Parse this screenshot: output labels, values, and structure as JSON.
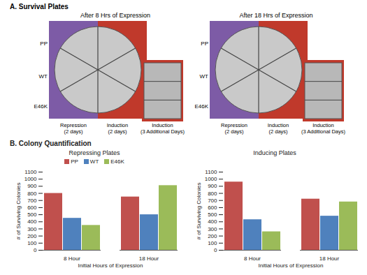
{
  "panel_a": {
    "title": "A. Survival Plates",
    "plates": [
      "After 8 Hrs of Expression",
      "After 18 Hrs of Expression"
    ],
    "strains": [
      "PP",
      "WT",
      "E46K"
    ],
    "conditions": [
      "Repression (2 days)",
      "Induction (2 days)",
      "Induction (3 Additional Days)"
    ]
  },
  "panel_b": {
    "title": "B. Colony Quantification"
  },
  "chart_data": [
    {
      "type": "bar",
      "title": "Repressing Plates",
      "categories": [
        "8 Hour",
        "18 Hour"
      ],
      "series": [
        {
          "name": "PP",
          "color": "#c0504d",
          "values": [
            800,
            750
          ]
        },
        {
          "name": "WT",
          "color": "#4f81bd",
          "values": [
            450,
            500
          ]
        },
        {
          "name": "E46K",
          "color": "#9bbb59",
          "values": [
            350,
            910
          ]
        }
      ],
      "xlabel": "Initial Hours of Expression",
      "ylabel": "# of Surviving Colonies",
      "ylim": [
        0,
        1100
      ],
      "yticks": [
        0,
        100,
        200,
        300,
        400,
        500,
        600,
        700,
        800,
        900,
        1000,
        1100
      ],
      "legend": "top"
    },
    {
      "type": "bar",
      "title": "Inducing Plates",
      "categories": [
        "8 Hour",
        "18 Hour"
      ],
      "series": [
        {
          "name": "PP",
          "color": "#c0504d",
          "values": [
            960,
            720
          ]
        },
        {
          "name": "WT",
          "color": "#4f81bd",
          "values": [
            430,
            480
          ]
        },
        {
          "name": "E46K",
          "color": "#9bbb59",
          "values": [
            260,
            680
          ]
        }
      ],
      "xlabel": "Initial Hours of Expression",
      "ylabel": "# of Surviving Colonies",
      "ylim": [
        0,
        1100
      ],
      "yticks": [
        0,
        100,
        200,
        300,
        400,
        500,
        600,
        700,
        800,
        900,
        1000,
        1100
      ]
    }
  ]
}
